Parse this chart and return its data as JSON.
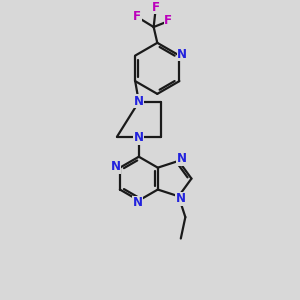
{
  "bg": "#d8d8d8",
  "bond_color": "#1a1a1a",
  "N_color": "#2222dd",
  "F_color": "#bb00bb",
  "fs": 8.5,
  "lw": 1.6,
  "figsize": [
    3.0,
    3.0
  ],
  "dpi": 100,
  "xlim": [
    -1.5,
    8.5
  ],
  "ylim": [
    -1.0,
    11.0
  ]
}
